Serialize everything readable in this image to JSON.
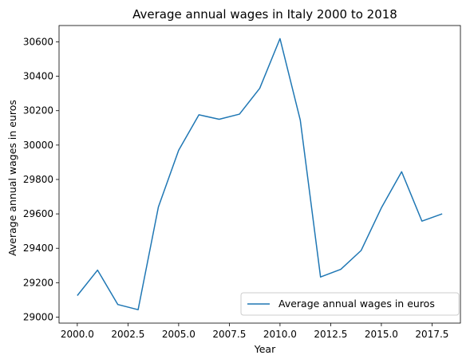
{
  "chart_data": {
    "type": "line",
    "title": "Average annual wages in Italy 2000 to 2018",
    "xlabel": "Year",
    "ylabel": "Average annual wages in euros",
    "xlim": [
      1999.1,
      2018.9
    ],
    "ylim": [
      28965,
      30695
    ],
    "xticks": [
      2000.0,
      2002.5,
      2005.0,
      2007.5,
      2010.0,
      2012.5,
      2015.0,
      2017.5
    ],
    "xtick_labels": [
      "2000.0",
      "2002.5",
      "2005.0",
      "2007.5",
      "2010.0",
      "2012.5",
      "2015.0",
      "2017.5"
    ],
    "yticks": [
      29000,
      29200,
      29400,
      29600,
      29800,
      30000,
      30200,
      30400,
      30600
    ],
    "ytick_labels": [
      "29000",
      "29200",
      "29400",
      "29600",
      "29800",
      "30000",
      "30200",
      "30400",
      "30600"
    ],
    "grid": false,
    "legend_position": "lower-right",
    "series": [
      {
        "name": "Average annual wages in euros",
        "color": "#1f77b4",
        "x": [
          2000,
          2001,
          2002,
          2003,
          2004,
          2005,
          2006,
          2007,
          2008,
          2009,
          2010,
          2011,
          2012,
          2013,
          2014,
          2015,
          2016,
          2017,
          2018
        ],
        "values": [
          29125,
          29273,
          29073,
          29043,
          29640,
          29970,
          30176,
          30150,
          30180,
          30330,
          30619,
          30145,
          29233,
          29278,
          29387,
          29635,
          29845,
          29558,
          29600
        ]
      }
    ]
  }
}
